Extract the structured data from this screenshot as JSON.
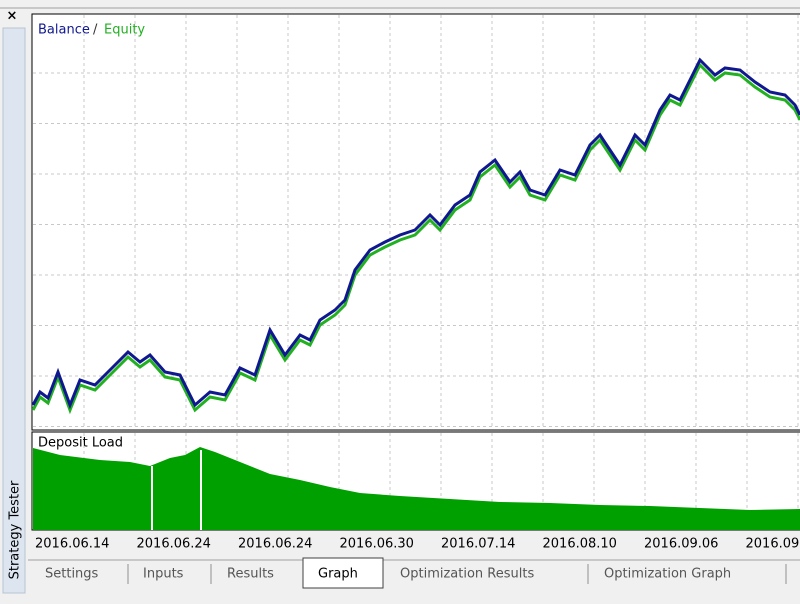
{
  "window": {
    "close": "×",
    "side_title": "Strategy Tester"
  },
  "graph": {
    "legend": {
      "balance": "Balance",
      "separator": "/",
      "equity": "Equity"
    },
    "deposit_label": "Deposit Load",
    "dates": [
      "2016.06.14",
      "2016.06.24",
      "2016.06.24",
      "2016.06.30",
      "2016.07.14",
      "2016.08.10",
      "2016.09.06",
      "2016.09."
    ]
  },
  "tabs": [
    "Settings",
    "Inputs",
    "Results",
    "Graph",
    "Optimization Results",
    "Optimization Graph"
  ]
}
